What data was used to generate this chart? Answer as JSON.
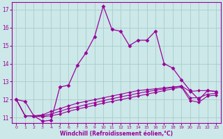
{
  "xlabel": "Windchill (Refroidissement éolien,°C)",
  "bg_color": "#cce8e8",
  "grid_color": "#aacccc",
  "line_color": "#990099",
  "xlim": [
    -0.5,
    23.5
  ],
  "ylim": [
    10.7,
    17.4
  ],
  "yticks": [
    11,
    12,
    13,
    14,
    15,
    16,
    17
  ],
  "xticks": [
    0,
    1,
    2,
    3,
    4,
    5,
    6,
    7,
    8,
    9,
    10,
    11,
    12,
    13,
    14,
    15,
    16,
    17,
    18,
    19,
    20,
    21,
    22,
    23
  ],
  "series": {
    "line1": {
      "x": [
        0,
        1,
        2,
        3,
        4,
        5,
        6,
        7,
        8,
        9,
        10,
        11,
        12,
        13,
        14,
        15,
        16,
        17,
        18,
        19,
        20,
        21,
        22,
        23
      ],
      "y": [
        12.0,
        11.9,
        11.1,
        10.8,
        10.85,
        12.7,
        12.8,
        13.9,
        14.6,
        15.5,
        17.2,
        15.9,
        15.8,
        15.0,
        15.3,
        15.3,
        15.8,
        14.0,
        13.75,
        13.1,
        12.5,
        12.0,
        12.5,
        12.45
      ],
      "linestyle": "-",
      "marker": "D",
      "markersize": 2.5,
      "linewidth": 0.9
    },
    "line2": {
      "x": [
        0,
        1,
        2,
        3,
        4,
        5,
        6,
        7,
        8,
        9,
        10,
        11,
        12,
        13,
        14,
        15,
        16,
        17,
        18,
        19,
        20,
        21,
        22,
        23
      ],
      "y": [
        12.0,
        11.1,
        11.1,
        11.15,
        11.35,
        11.5,
        11.65,
        11.8,
        11.9,
        12.0,
        12.1,
        12.2,
        12.3,
        12.4,
        12.5,
        12.55,
        12.6,
        12.65,
        12.7,
        12.75,
        12.45,
        12.5,
        12.5,
        12.45
      ],
      "linestyle": "-",
      "marker": "D",
      "markersize": 2.0,
      "linewidth": 0.8
    },
    "line3": {
      "x": [
        0,
        1,
        2,
        3,
        4,
        5,
        6,
        7,
        8,
        9,
        10,
        11,
        12,
        13,
        14,
        15,
        16,
        17,
        18,
        19,
        20,
        21,
        22,
        23
      ],
      "y": [
        12.0,
        11.1,
        11.1,
        11.1,
        11.2,
        11.35,
        11.5,
        11.6,
        11.72,
        11.83,
        11.94,
        12.05,
        12.15,
        12.25,
        12.35,
        12.44,
        12.52,
        12.6,
        12.68,
        12.75,
        12.1,
        12.1,
        12.3,
        12.35
      ],
      "linestyle": "-",
      "marker": "D",
      "markersize": 2.0,
      "linewidth": 0.8
    },
    "line4": {
      "x": [
        0,
        1,
        2,
        3,
        4,
        5,
        6,
        7,
        8,
        9,
        10,
        11,
        12,
        13,
        14,
        15,
        16,
        17,
        18,
        19,
        20,
        21,
        22,
        23
      ],
      "y": [
        12.0,
        11.1,
        11.08,
        11.05,
        11.1,
        11.2,
        11.35,
        11.47,
        11.58,
        11.69,
        11.8,
        11.9,
        12.0,
        12.1,
        12.2,
        12.3,
        12.4,
        12.5,
        12.6,
        12.7,
        11.95,
        11.85,
        12.2,
        12.25
      ],
      "linestyle": "-",
      "marker": "D",
      "markersize": 2.0,
      "linewidth": 0.8
    }
  }
}
